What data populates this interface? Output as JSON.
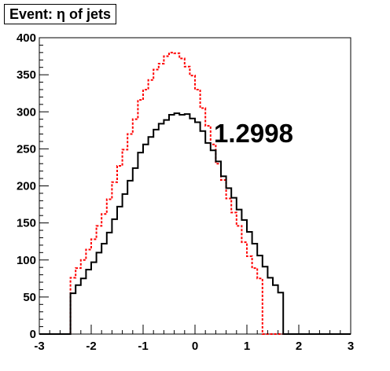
{
  "chart_data": {
    "type": "histogram",
    "title": "Event: η of jets",
    "annotation": "1.2998",
    "xlim": [
      -3,
      3
    ],
    "ylim": [
      0,
      400
    ],
    "x_ticks": [
      -3,
      -2,
      -1,
      0,
      1,
      2,
      3
    ],
    "x_tick_labels": [
      "-3",
      "-2",
      "-1",
      "0",
      "1",
      "2",
      "3"
    ],
    "y_ticks": [
      0,
      50,
      100,
      150,
      200,
      250,
      300,
      350,
      400
    ],
    "y_tick_labels": [
      "0",
      "50",
      "100",
      "150",
      "200",
      "250",
      "300",
      "350",
      "400"
    ],
    "bin_edges": [
      -3.0,
      -2.9,
      -2.8,
      -2.7,
      -2.6,
      -2.5,
      -2.4,
      -2.3,
      -2.2,
      -2.1,
      -2.0,
      -1.9,
      -1.8,
      -1.7,
      -1.6,
      -1.5,
      -1.4,
      -1.3,
      -1.2,
      -1.1,
      -1.0,
      -0.9,
      -0.8,
      -0.7,
      -0.6,
      -0.5,
      -0.4,
      -0.3,
      -0.2,
      -0.1,
      0.0,
      0.1,
      0.2,
      0.3,
      0.4,
      0.5,
      0.6,
      0.7,
      0.8,
      0.9,
      1.0,
      1.1,
      1.2,
      1.3,
      1.4,
      1.5,
      1.6,
      1.7,
      1.8,
      1.9,
      2.0,
      2.1,
      2.2,
      2.3,
      2.4,
      2.5,
      2.6,
      2.7,
      2.8,
      2.9,
      3.0
    ],
    "series": [
      {
        "style": "solid",
        "color": "#000000",
        "values": [
          0,
          0,
          0,
          0,
          0,
          0,
          55,
          66,
          75,
          87,
          97,
          110,
          122,
          137,
          155,
          172,
          189,
          207,
          224,
          245,
          256,
          266,
          276,
          284,
          289,
          296,
          298,
          296,
          297,
          291,
          286,
          274,
          258,
          248,
          233,
          213,
          197,
          184,
          168,
          154,
          138,
          122,
          106,
          91,
          76,
          66,
          56,
          0,
          0,
          0,
          0,
          0,
          0,
          0,
          0,
          0,
          0,
          0,
          0,
          0
        ]
      },
      {
        "style": "dashed",
        "color": "#ff0000",
        "values": [
          0,
          0,
          0,
          0,
          0,
          0,
          76,
          89,
          100,
          114,
          128,
          146,
          162,
          182,
          205,
          227,
          249,
          270,
          290,
          316,
          330,
          343,
          357,
          365,
          375,
          380,
          379,
          372,
          361,
          349,
          330,
          305,
          281,
          256,
          230,
          208,
          183,
          164,
          146,
          124,
          105,
          89,
          75,
          0,
          0,
          0,
          0,
          0,
          0,
          0,
          0,
          0,
          0,
          0,
          0,
          0,
          0,
          0,
          0,
          0
        ]
      }
    ]
  }
}
